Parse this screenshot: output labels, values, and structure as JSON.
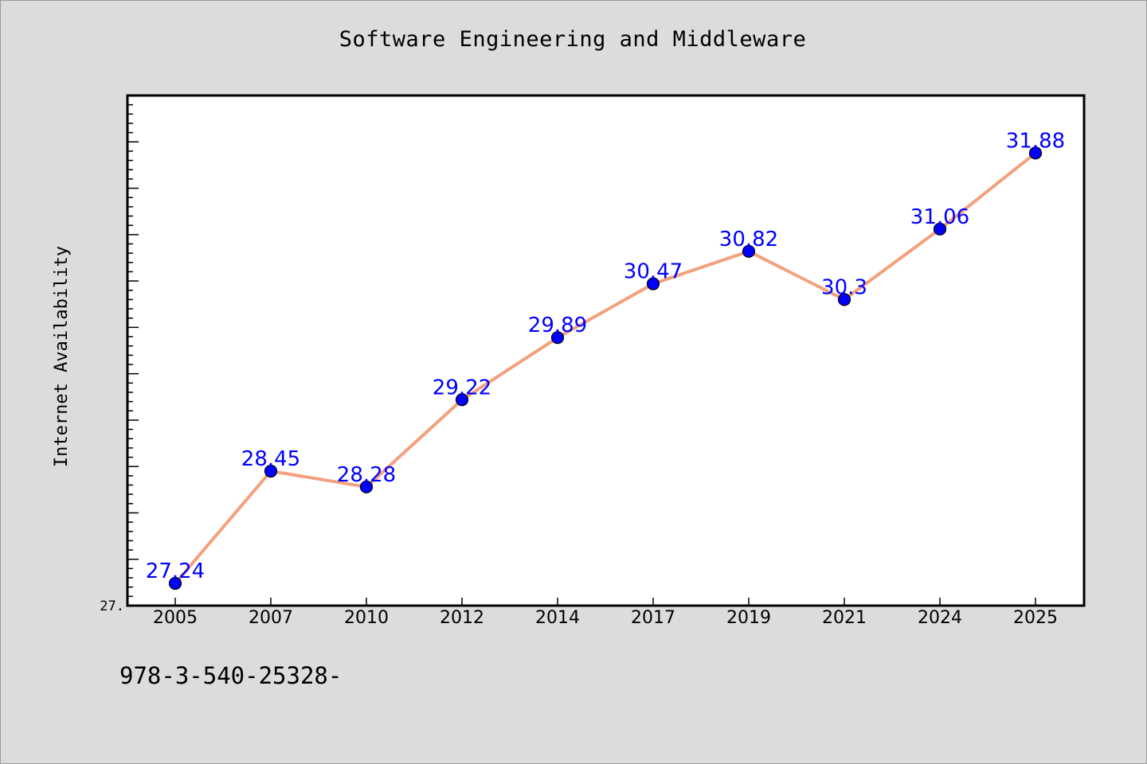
{
  "chart_data": {
    "type": "line",
    "title": "Software Engineering and Middleware",
    "ylabel": "Internet Availability",
    "xlabel": "",
    "categories": [
      "2005",
      "2007",
      "2010",
      "2012",
      "2014",
      "2017",
      "2019",
      "2021",
      "2024",
      "2025"
    ],
    "series": [
      {
        "values": [
          27.24,
          28.45,
          28.28,
          29.22,
          29.89,
          30.47,
          30.82,
          30.3,
          31.06,
          31.88
        ],
        "labels": [
          "27.24",
          "28.45",
          "28.28",
          "29.22",
          "29.89",
          "30.47",
          "30.82",
          "30.3",
          "31.06",
          "31.88"
        ]
      }
    ],
    "ylim": [
      27.0,
      32.5
    ],
    "y_tick_labels": [
      {
        "value": 27.0,
        "label": "27."
      }
    ],
    "grid": false,
    "line_color": "#f4a07c",
    "marker_color": "#0000ff",
    "label_color": "#0000ff"
  },
  "footer": {
    "text": "978-3-540-25328-"
  }
}
